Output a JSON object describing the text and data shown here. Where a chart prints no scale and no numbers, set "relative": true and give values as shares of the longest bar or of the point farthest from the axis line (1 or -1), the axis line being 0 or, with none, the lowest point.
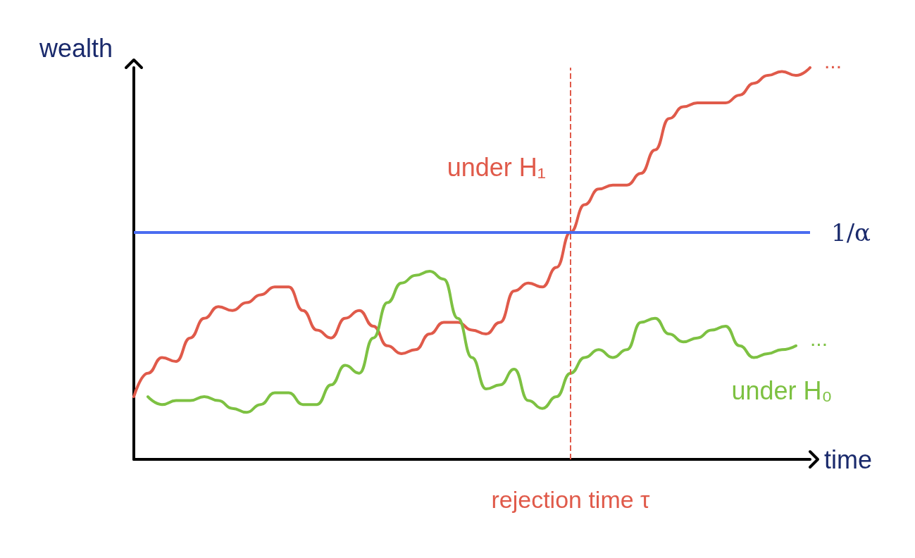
{
  "chart_data": {
    "type": "line",
    "relative": true,
    "xlabel": "time",
    "ylabel": "wealth",
    "categories": [
      null,
      null,
      null,
      null,
      null,
      null,
      null,
      null,
      null,
      null,
      null,
      null,
      null,
      null,
      null,
      null,
      null,
      null,
      null,
      null,
      null,
      null,
      null,
      null,
      null,
      null,
      null,
      null,
      null,
      null,
      null,
      null,
      null,
      null,
      null,
      null,
      null,
      null,
      null,
      null,
      null,
      null,
      null,
      null,
      null,
      null,
      null,
      null,
      null
    ],
    "series": [
      {
        "name": "under H₁",
        "color": "#e05a4a",
        "values": [
          0.16,
          0.22,
          0.26,
          0.25,
          0.31,
          0.36,
          0.39,
          0.38,
          0.4,
          0.42,
          0.44,
          0.44,
          0.38,
          0.33,
          0.31,
          0.36,
          0.38,
          0.34,
          0.29,
          0.27,
          0.28,
          0.32,
          0.35,
          0.35,
          0.33,
          0.32,
          0.35,
          0.43,
          0.45,
          0.44,
          0.49,
          0.58,
          0.65,
          0.69,
          0.7,
          0.7,
          0.73,
          0.79,
          0.87,
          0.9,
          0.91,
          0.91,
          0.91,
          0.93,
          0.96,
          0.98,
          0.99,
          0.98,
          1
        ]
      },
      {
        "name": "under H₀",
        "color": "#7dc142",
        "values": [
          null,
          0.16,
          0.14,
          0.15,
          0.15,
          0.16,
          0.15,
          0.13,
          0.12,
          0.14,
          0.17,
          0.17,
          0.14,
          0.14,
          0.19,
          0.24,
          0.22,
          0.31,
          0.4,
          0.45,
          0.47,
          0.48,
          0.46,
          0.36,
          0.26,
          0.18,
          0.19,
          0.23,
          0.15,
          0.13,
          0.16,
          0.22,
          0.26,
          0.28,
          0.26,
          0.28,
          0.35,
          0.36,
          0.32,
          0.3,
          0.31,
          0.33,
          0.34,
          0.29,
          0.26,
          0.27,
          0.28,
          0.29,
          null
        ]
      }
    ],
    "annotations": [
      "...",
      "..."
    ],
    "ref_lines": [
      {
        "axis": "y",
        "value": 0.58,
        "label": "1/α",
        "color": "#4a6cf0",
        "line_style": "solid"
      },
      {
        "axis": "x",
        "label": "rejection time τ",
        "color": "#e05a4a",
        "line_style": "dashed"
      }
    ],
    "legend": false,
    "grid": false,
    "marker": "none",
    "line_style": "solid"
  }
}
